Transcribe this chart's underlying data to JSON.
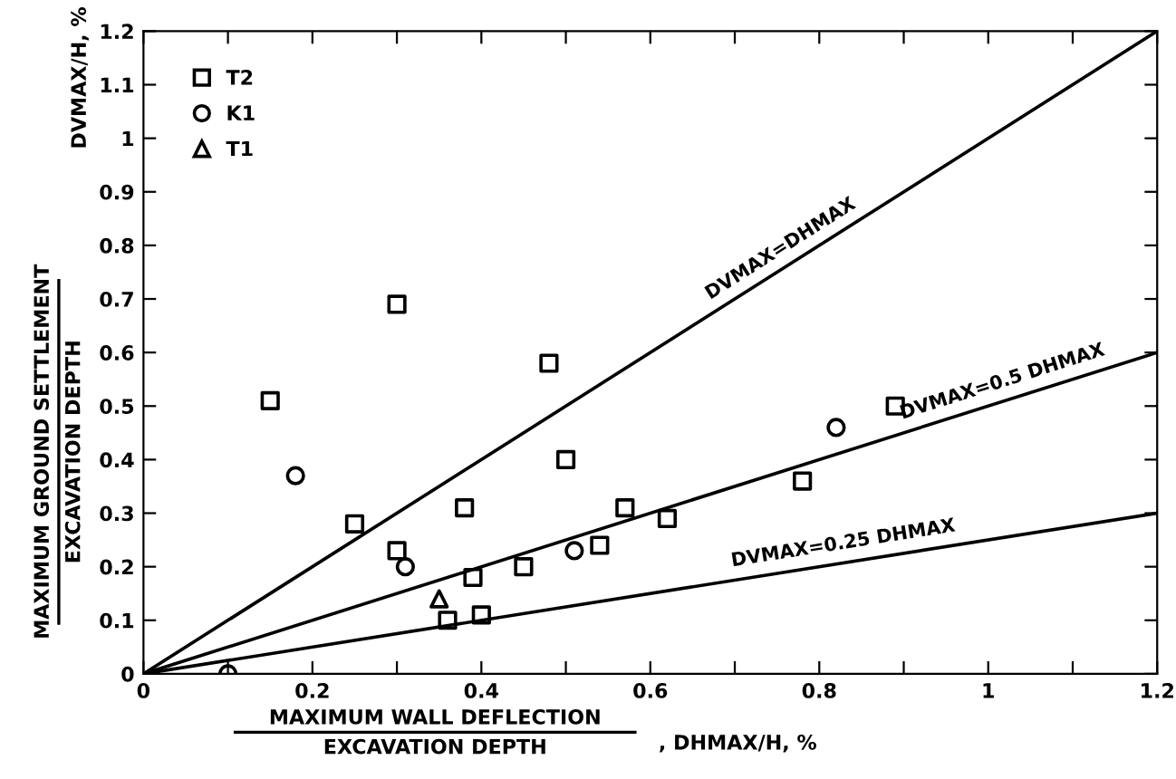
{
  "chart_data": {
    "type": "scatter",
    "xlabel": "MAXIMUM WALL DEFLECTION\nEXCAVATION DEPTH\n, DHMAX/H, %",
    "ylabel": "MAXIMUM GROUND SETTLEMENT\nEXCAVATION DEPTH\nDVMAX/H, %",
    "xlim": [
      0,
      1.2
    ],
    "ylim": [
      0,
      1.2
    ],
    "xticks": [
      0,
      {
        "value": 0.1,
        "label": null
      },
      0.2,
      {
        "value": 0.3,
        "label": null
      },
      0.4,
      {
        "value": 0.5,
        "label": null
      },
      0.6,
      {
        "value": 0.7,
        "label": null
      },
      0.8,
      {
        "value": 0.9,
        "label": null
      },
      1,
      {
        "value": 1.1,
        "label": null
      },
      1.2
    ],
    "yticks": [
      0,
      0.1,
      0.2,
      0.3,
      0.4,
      0.5,
      0.6,
      0.7,
      0.8,
      0.9,
      1,
      1.1,
      1.2
    ],
    "legend": "top left",
    "grid": false,
    "series": [
      {
        "name": "T2",
        "color": "#000000",
        "marker": "square",
        "x": [
          0.15,
          0.25,
          0.3,
          0.3,
          0.38,
          0.39,
          0.36,
          0.4,
          0.45,
          0.48,
          0.5,
          0.54,
          0.57,
          0.62,
          0.78,
          0.89
        ],
        "values": [
          0.51,
          0.28,
          0.23,
          0.69,
          0.31,
          0.18,
          0.1,
          0.11,
          0.2,
          0.58,
          0.4,
          0.24,
          0.31,
          0.29,
          0.36,
          0.5
        ]
      },
      {
        "name": "K1",
        "color": "#000000",
        "marker": "circle",
        "x": [
          0.1,
          0.18,
          0.31,
          0.51,
          0.82
        ],
        "values": [
          0,
          0.37,
          0.2,
          0.23,
          0.46
        ]
      },
      {
        "name": "T1",
        "color": "#000000",
        "marker": "triangle",
        "x": [
          0.35
        ],
        "values": [
          0.14
        ]
      },
      {
        "type": "line",
        "color": "#000000",
        "marker": "none",
        "x": [
          0,
          1.2
        ],
        "values": [
          0,
          1.2
        ]
      },
      {
        "type": "line",
        "color": "#000000",
        "marker": "none",
        "x": [
          0,
          1.2
        ],
        "values": [
          0,
          0.6
        ]
      },
      {
        "type": "line",
        "color": "#000000",
        "marker": "none",
        "x": [
          0,
          1.2
        ],
        "values": [
          0,
          0.3
        ]
      }
    ],
    "annotations": [
      {
        "text": "DVMAX=DHMAX",
        "x": 0.76,
        "y": 0.76
      },
      {
        "text": "DVMAX=0.5 DHMAX",
        "x": 1.02,
        "y": 0.51
      },
      {
        "text": "DVMAX=0.25 DHMAX",
        "x": 0.83,
        "y": 0.2075
      }
    ]
  }
}
